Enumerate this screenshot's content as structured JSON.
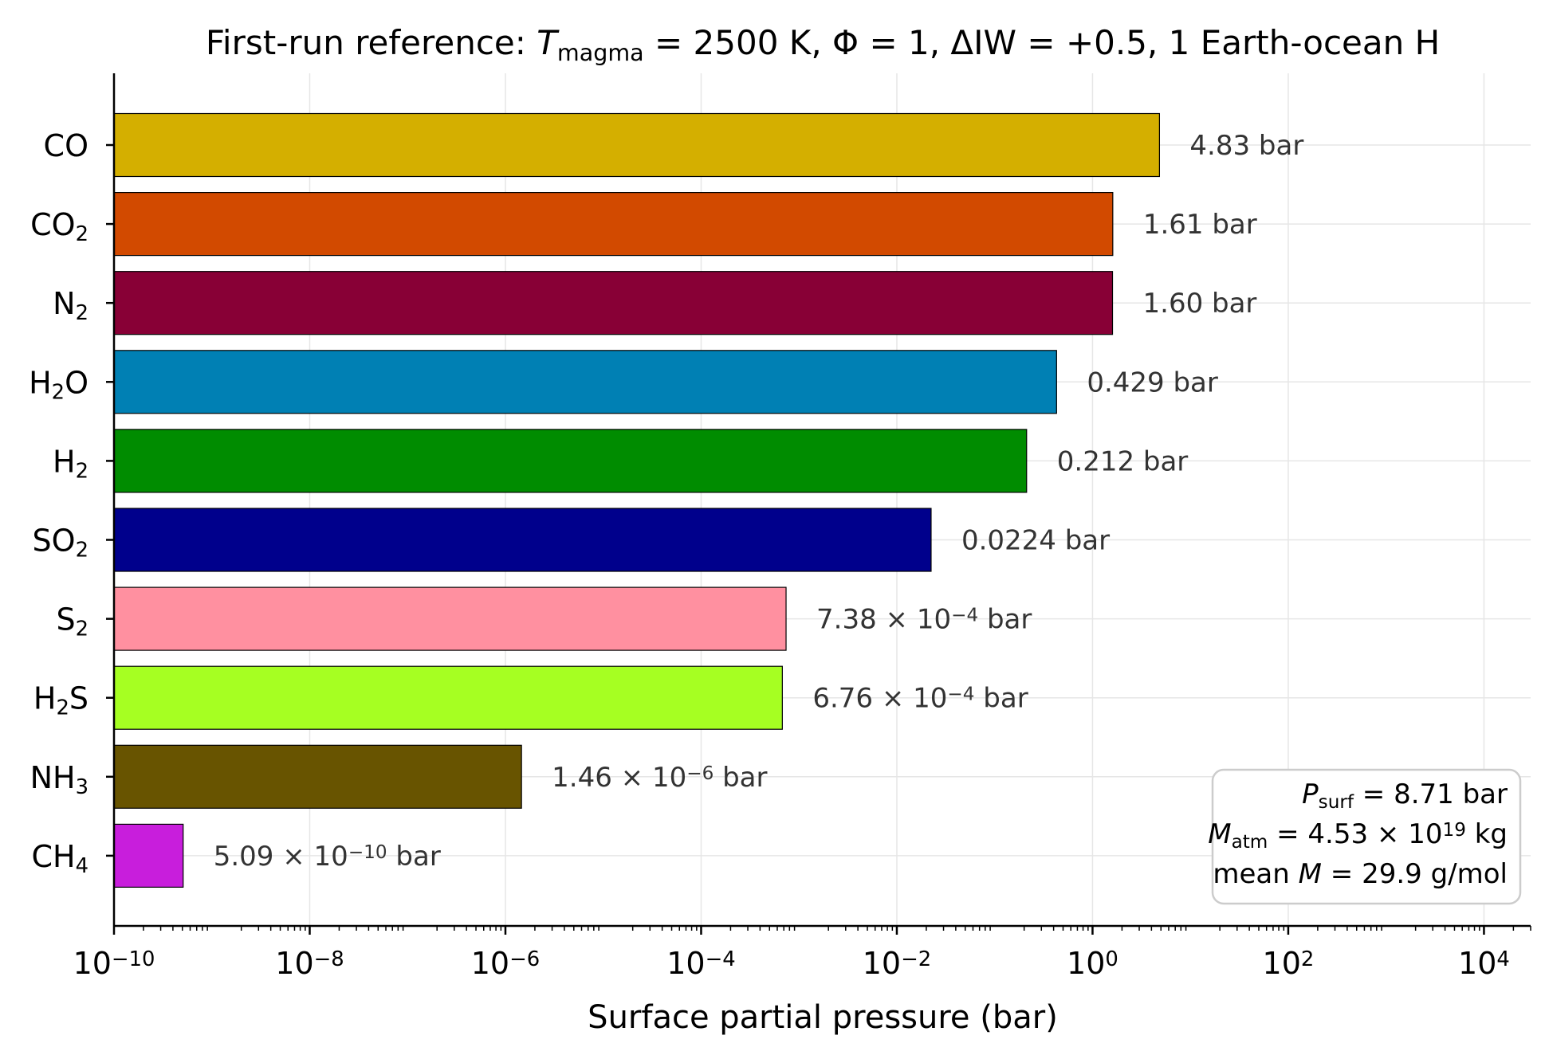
{
  "chart_data": {
    "type": "bar",
    "orientation": "horizontal",
    "x_scale": "log",
    "title": {
      "parts": [
        {
          "text": "First-run reference: "
        },
        {
          "text": "T",
          "style": "italic"
        },
        {
          "text": "magma",
          "shift": "sub"
        },
        {
          "text": " = 2500 K, Φ = 1, ΔIW = +0.5, 1 Earth-ocean H"
        }
      ]
    },
    "xlabel": "Surface partial pressure (bar)",
    "xlim": [
      1e-10,
      30000
    ],
    "grid": true,
    "categories": [
      {
        "id": "CO",
        "parts": [
          {
            "text": "CO"
          }
        ]
      },
      {
        "id": "CO2",
        "parts": [
          {
            "text": "CO"
          },
          {
            "text": "2",
            "shift": "sub"
          }
        ]
      },
      {
        "id": "N2",
        "parts": [
          {
            "text": "N"
          },
          {
            "text": "2",
            "shift": "sub"
          }
        ]
      },
      {
        "id": "H2O",
        "parts": [
          {
            "text": "H"
          },
          {
            "text": "2",
            "shift": "sub"
          },
          {
            "text": "O"
          }
        ]
      },
      {
        "id": "H2",
        "parts": [
          {
            "text": "H"
          },
          {
            "text": "2",
            "shift": "sub"
          }
        ]
      },
      {
        "id": "SO2",
        "parts": [
          {
            "text": "SO"
          },
          {
            "text": "2",
            "shift": "sub"
          }
        ]
      },
      {
        "id": "S2",
        "parts": [
          {
            "text": "S"
          },
          {
            "text": "2",
            "shift": "sub"
          }
        ]
      },
      {
        "id": "H2S",
        "parts": [
          {
            "text": "H"
          },
          {
            "text": "2",
            "shift": "sub"
          },
          {
            "text": "S"
          }
        ]
      },
      {
        "id": "NH3",
        "parts": [
          {
            "text": "NH"
          },
          {
            "text": "3",
            "shift": "sub"
          }
        ]
      },
      {
        "id": "CH4",
        "parts": [
          {
            "text": "CH"
          },
          {
            "text": "4",
            "shift": "sub"
          }
        ]
      }
    ],
    "values": [
      4.83,
      1.61,
      1.6,
      0.429,
      0.212,
      0.0224,
      0.000738,
      0.000676,
      1.46e-06,
      5.09e-10
    ],
    "colors": [
      "#d4af00",
      "#d24a00",
      "#880036",
      "#0080b4",
      "#008c00",
      "#00008c",
      "#ff90a0",
      "#a6ff22",
      "#685400",
      "#c81edc"
    ],
    "data_labels": [
      [
        {
          "text": "4.83 bar"
        }
      ],
      [
        {
          "text": "1.61 bar"
        }
      ],
      [
        {
          "text": "1.60 bar"
        }
      ],
      [
        {
          "text": "0.429 bar"
        }
      ],
      [
        {
          "text": "0.212 bar"
        }
      ],
      [
        {
          "text": "0.0224 bar"
        }
      ],
      [
        {
          "text": "7.38 × 10"
        },
        {
          "text": "−4",
          "shift": "sup"
        },
        {
          "text": " bar"
        }
      ],
      [
        {
          "text": "6.76 × 10"
        },
        {
          "text": "−4",
          "shift": "sup"
        },
        {
          "text": " bar"
        }
      ],
      [
        {
          "text": "1.46 × 10"
        },
        {
          "text": "−6",
          "shift": "sup"
        },
        {
          "text": " bar"
        }
      ],
      [
        {
          "text": "5.09 × 10"
        },
        {
          "text": "−10",
          "shift": "sup"
        },
        {
          "text": " bar"
        }
      ]
    ],
    "x_ticks": [
      {
        "value": 1e-10,
        "parts": [
          {
            "text": "10"
          },
          {
            "text": "−10",
            "shift": "sup"
          }
        ]
      },
      {
        "value": 1e-08,
        "parts": [
          {
            "text": "10"
          },
          {
            "text": "−8",
            "shift": "sup"
          }
        ]
      },
      {
        "value": 1e-06,
        "parts": [
          {
            "text": "10"
          },
          {
            "text": "−6",
            "shift": "sup"
          }
        ]
      },
      {
        "value": 0.0001,
        "parts": [
          {
            "text": "10"
          },
          {
            "text": "−4",
            "shift": "sup"
          }
        ]
      },
      {
        "value": 0.01,
        "parts": [
          {
            "text": "10"
          },
          {
            "text": "−2",
            "shift": "sup"
          }
        ]
      },
      {
        "value": 1,
        "parts": [
          {
            "text": "10"
          },
          {
            "text": "0",
            "shift": "sup"
          }
        ]
      },
      {
        "value": 100,
        "parts": [
          {
            "text": "10"
          },
          {
            "text": "2",
            "shift": "sup"
          }
        ]
      },
      {
        "value": 10000,
        "parts": [
          {
            "text": "10"
          },
          {
            "text": "4",
            "shift": "sup"
          }
        ]
      }
    ],
    "info_box": {
      "placement": "bottom-right",
      "lines": [
        [
          {
            "text": "P",
            "style": "italic"
          },
          {
            "text": "surf",
            "shift": "sub"
          },
          {
            "text": " = 8.71 bar"
          }
        ],
        [
          {
            "text": "M",
            "style": "italic"
          },
          {
            "text": "atm",
            "shift": "sub"
          },
          {
            "text": " = 4.53 × 10"
          },
          {
            "text": "19",
            "shift": "sup"
          },
          {
            "text": " kg"
          }
        ],
        [
          {
            "text": "mean "
          },
          {
            "text": "M",
            "style": "italic"
          },
          {
            "text": " = 29.9 g/mol"
          }
        ]
      ]
    }
  }
}
